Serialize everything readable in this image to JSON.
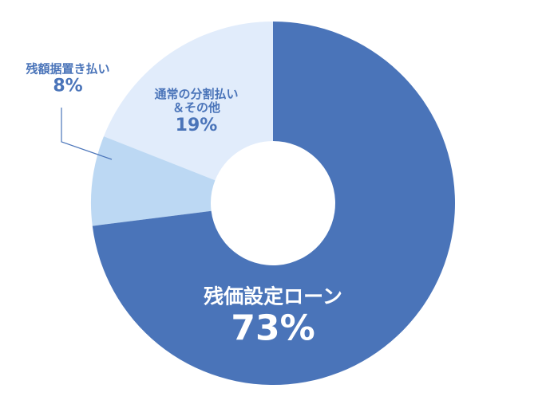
{
  "chart_data": {
    "type": "donut",
    "categories": [
      "残価設定ローン",
      "残額据置き払い",
      "通常の分割払い\n＆その他"
    ],
    "values": [
      73,
      8,
      19
    ],
    "value_labels": [
      "73%",
      "8%",
      "19%"
    ],
    "colors": [
      "#4a74b9",
      "#bcd8f3",
      "#e1ecfb"
    ]
  }
}
